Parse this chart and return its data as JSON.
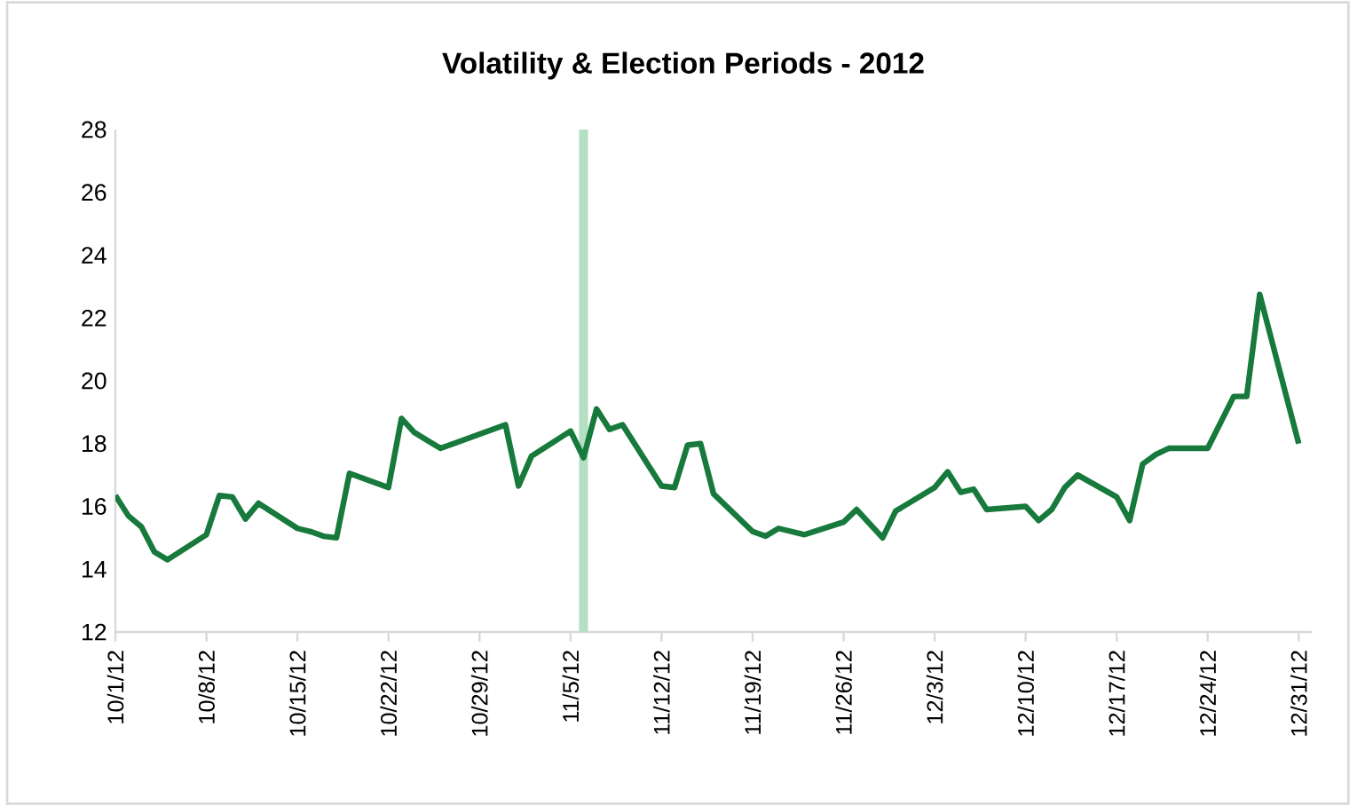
{
  "chart_data": {
    "type": "line",
    "title": "Volatility & Election Periods - 2012",
    "x": [
      "2012-10-01",
      "2012-10-02",
      "2012-10-03",
      "2012-10-04",
      "2012-10-05",
      "2012-10-08",
      "2012-10-09",
      "2012-10-10",
      "2012-10-11",
      "2012-10-12",
      "2012-10-15",
      "2012-10-16",
      "2012-10-17",
      "2012-10-18",
      "2012-10-19",
      "2012-10-22",
      "2012-10-23",
      "2012-10-24",
      "2012-10-25",
      "2012-10-26",
      "2012-10-31",
      "2012-11-01",
      "2012-11-02",
      "2012-11-05",
      "2012-11-06",
      "2012-11-07",
      "2012-11-08",
      "2012-11-09",
      "2012-11-12",
      "2012-11-13",
      "2012-11-14",
      "2012-11-15",
      "2012-11-16",
      "2012-11-19",
      "2012-11-20",
      "2012-11-21",
      "2012-11-23",
      "2012-11-26",
      "2012-11-27",
      "2012-11-29",
      "2012-11-30",
      "2012-12-03",
      "2012-12-04",
      "2012-12-05",
      "2012-12-06",
      "2012-12-07",
      "2012-12-10",
      "2012-12-11",
      "2012-12-12",
      "2012-12-13",
      "2012-12-14",
      "2012-12-17",
      "2012-12-18",
      "2012-12-19",
      "2012-12-20",
      "2012-12-21",
      "2012-12-24",
      "2012-12-26",
      "2012-12-27",
      "2012-12-28",
      "2012-12-31"
    ],
    "series": [
      {
        "color": "#177a3c",
        "values": [
          16.35,
          15.7,
          15.35,
          14.55,
          14.3,
          15.1,
          16.35,
          16.3,
          15.6,
          16.1,
          15.3,
          15.2,
          15.05,
          15.0,
          17.05,
          16.6,
          18.8,
          18.35,
          18.1,
          17.85,
          18.6,
          16.65,
          17.6,
          18.4,
          17.55,
          19.1,
          18.45,
          18.6,
          16.65,
          16.6,
          17.95,
          18.0,
          16.4,
          15.2,
          15.05,
          15.3,
          15.1,
          15.5,
          15.9,
          15.0,
          15.85,
          16.6,
          17.1,
          16.45,
          16.55,
          15.9,
          16.0,
          15.55,
          15.9,
          16.6,
          17.0,
          16.3,
          15.55,
          17.35,
          17.65,
          17.85,
          17.85,
          19.5,
          19.5,
          22.75,
          18.0
        ]
      }
    ],
    "xlim": [
      "2012-10-01",
      "2013-01-01"
    ],
    "xticks": [
      {
        "value": "2012-10-01",
        "label": "10/1/12"
      },
      {
        "value": "2012-10-08",
        "label": "10/8/12"
      },
      {
        "value": "2012-10-15",
        "label": "10/15/12"
      },
      {
        "value": "2012-10-22",
        "label": "10/22/12"
      },
      {
        "value": "2012-10-29",
        "label": "10/29/12"
      },
      {
        "value": "2012-11-05",
        "label": "11/5/12"
      },
      {
        "value": "2012-11-12",
        "label": "11/12/12"
      },
      {
        "value": "2012-11-19",
        "label": "11/19/12"
      },
      {
        "value": "2012-11-26",
        "label": "11/26/12"
      },
      {
        "value": "2012-12-03",
        "label": "12/3/12"
      },
      {
        "value": "2012-12-10",
        "label": "12/10/12"
      },
      {
        "value": "2012-12-17",
        "label": "12/17/12"
      },
      {
        "value": "2012-12-24",
        "label": "12/24/12"
      },
      {
        "value": "2012-12-31",
        "label": "12/31/12"
      }
    ],
    "ylim": [
      12,
      28
    ],
    "yticks": [
      12,
      14,
      16,
      18,
      20,
      22,
      24,
      26,
      28
    ],
    "ref_lines": [
      {
        "axis": "x",
        "value": "2012-11-06",
        "color": "#b3dfc3"
      }
    ]
  }
}
